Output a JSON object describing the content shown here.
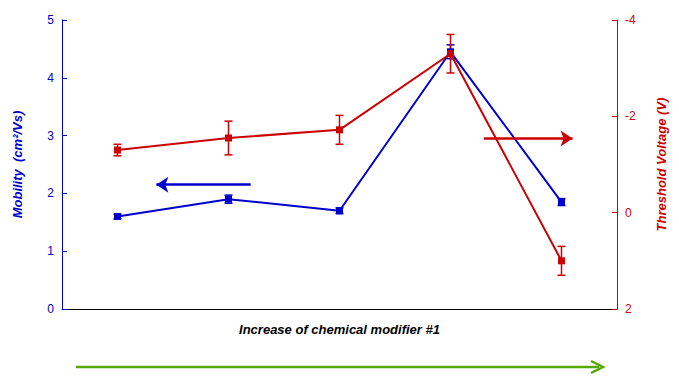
{
  "chart_data": {
    "type": "line",
    "x": [
      1,
      2,
      3,
      4,
      5
    ],
    "xlim": [
      0.5,
      5.5
    ],
    "xlabel": "Increase of chemical modifier #1",
    "xlabel_color": "#55aa00",
    "ylabel": "Mobility  (cm²/Vs)",
    "ylim": [
      0,
      5
    ],
    "yticks": [
      0,
      1,
      2,
      3,
      4,
      5
    ],
    "y2label": "Threshold Voltage (V)",
    "y2lim": [
      2,
      -4
    ],
    "y2ticks": [
      -4,
      -2,
      0,
      2
    ],
    "grid": false,
    "tick_labels": "y",
    "series": [
      {
        "color": "#0000cc",
        "marker": "square",
        "axis": "y",
        "values": [
          1.6,
          1.9,
          1.7,
          4.45,
          1.85
        ],
        "errors": [
          0.04,
          0.07,
          0.05,
          0.12,
          0.06
        ]
      },
      {
        "color": "#cc0000",
        "marker": "square",
        "axis": "y2",
        "values": [
          -1.3,
          -1.55,
          -1.72,
          -3.3,
          1.0
        ],
        "errors": [
          0.12,
          0.35,
          0.3,
          0.4,
          0.3
        ]
      }
    ],
    "annotations": [
      {
        "type": "arrow",
        "x": [
          2.2,
          1.35
        ],
        "y": 2.15,
        "color": "#0000cc"
      },
      {
        "type": "arrow",
        "x": [
          4.3,
          5.1
        ],
        "y": 2.95,
        "color": "#cc0000"
      }
    ]
  }
}
